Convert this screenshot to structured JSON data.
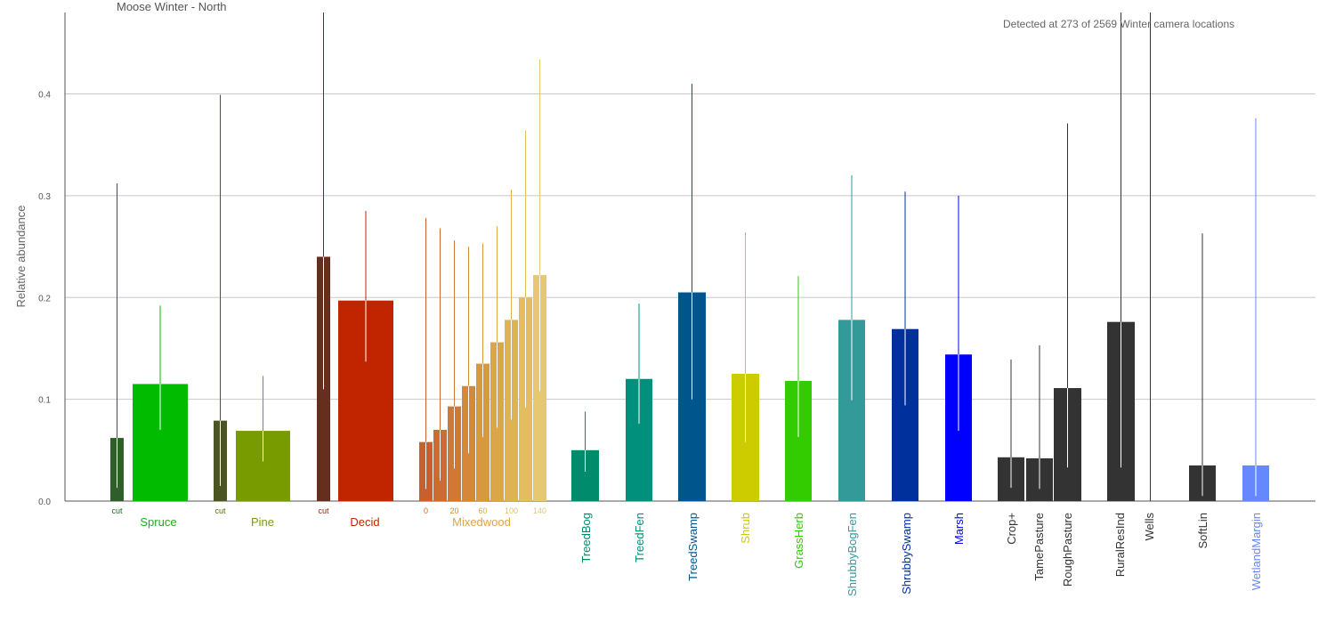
{
  "chart_data": {
    "type": "bar",
    "title": "Moose Winter - North",
    "annotation": "Detected at 273 of 2569 Winter camera locations",
    "ylabel": "Relative abundance",
    "ylim": [
      0,
      0.48
    ],
    "yticks": [
      "0.0",
      "0.1",
      "0.2",
      "0.3",
      "0.4"
    ],
    "ytick_values": [
      0,
      0.1,
      0.2,
      0.3,
      0.4
    ],
    "grid": true,
    "bars": [
      {
        "group": "Spruce",
        "sub": "cut",
        "value": 0.062,
        "lo": 0.013,
        "hi": 0.312,
        "color": "#2e5e2a"
      },
      {
        "group": "Spruce",
        "sub": "",
        "value": 0.115,
        "lo": 0.07,
        "hi": 0.192,
        "color": "#00bb00"
      },
      {
        "group": "Pine",
        "sub": "cut",
        "value": 0.079,
        "lo": 0.015,
        "hi": 0.399,
        "color": "#4b5521"
      },
      {
        "group": "Pine",
        "sub": "",
        "value": 0.069,
        "lo": 0.039,
        "hi": 0.123,
        "color": "#789c00"
      },
      {
        "group": "Decid",
        "sub": "cut",
        "value": 0.24,
        "lo": 0.11,
        "hi": 0.48,
        "color": "#652e1e"
      },
      {
        "group": "Decid",
        "sub": "",
        "value": 0.197,
        "lo": 0.137,
        "hi": 0.285,
        "color": "#c02500"
      },
      {
        "group": "Mixedwood",
        "sub": "0",
        "value": 0.058,
        "lo": 0.012,
        "hi": 0.278,
        "color": "#c8602c"
      },
      {
        "group": "Mixedwood",
        "sub": "",
        "value": 0.07,
        "lo": 0.02,
        "hi": 0.268,
        "color": "#cc6c30"
      },
      {
        "group": "Mixedwood",
        "sub": "20",
        "value": 0.093,
        "lo": 0.032,
        "hi": 0.256,
        "color": "#d07834"
      },
      {
        "group": "Mixedwood",
        "sub": "",
        "value": 0.113,
        "lo": 0.047,
        "hi": 0.25,
        "color": "#d48838"
      },
      {
        "group": "Mixedwood",
        "sub": "60",
        "value": 0.135,
        "lo": 0.063,
        "hi": 0.253,
        "color": "#d8983e"
      },
      {
        "group": "Mixedwood",
        "sub": "",
        "value": 0.156,
        "lo": 0.072,
        "hi": 0.27,
        "color": "#dca648"
      },
      {
        "group": "Mixedwood",
        "sub": "100",
        "value": 0.178,
        "lo": 0.08,
        "hi": 0.306,
        "color": "#e0b254"
      },
      {
        "group": "Mixedwood",
        "sub": "",
        "value": 0.2,
        "lo": 0.092,
        "hi": 0.364,
        "color": "#e3be60"
      },
      {
        "group": "Mixedwood",
        "sub": "140",
        "value": 0.222,
        "lo": 0.108,
        "hi": 0.434,
        "color": "#e6c870"
      },
      {
        "group": "TreedBog",
        "sub": "",
        "value": 0.05,
        "lo": 0.029,
        "hi": 0.088,
        "color": "#008c6c"
      },
      {
        "group": "TreedFen",
        "sub": "",
        "value": 0.12,
        "lo": 0.076,
        "hi": 0.194,
        "color": "#00907c"
      },
      {
        "group": "TreedSwamp",
        "sub": "",
        "value": 0.205,
        "lo": 0.1,
        "hi": 0.41,
        "color": "#00568c"
      },
      {
        "group": "Shrub",
        "sub": "",
        "value": 0.125,
        "lo": 0.058,
        "hi": 0.264,
        "color": "#cccc00"
      },
      {
        "group": "GrassHerb",
        "sub": "",
        "value": 0.118,
        "lo": 0.063,
        "hi": 0.221,
        "color": "#33cc00"
      },
      {
        "group": "ShrubbyBogFen",
        "sub": "",
        "value": 0.178,
        "lo": 0.099,
        "hi": 0.32,
        "color": "#339999"
      },
      {
        "group": "ShrubbySwamp",
        "sub": "",
        "value": 0.169,
        "lo": 0.094,
        "hi": 0.304,
        "color": "#00309c"
      },
      {
        "group": "Marsh",
        "sub": "",
        "value": 0.144,
        "lo": 0.069,
        "hi": 0.3,
        "color": "#0000ff"
      },
      {
        "group": "Crop+",
        "sub": "",
        "value": 0.043,
        "lo": 0.013,
        "hi": 0.139,
        "color": "#333333"
      },
      {
        "group": "TamePasture",
        "sub": "",
        "value": 0.042,
        "lo": 0.012,
        "hi": 0.153,
        "color": "#333333"
      },
      {
        "group": "RoughPasture",
        "sub": "",
        "value": 0.111,
        "lo": 0.033,
        "hi": 0.371,
        "color": "#333333"
      },
      {
        "group": "RuralResInd",
        "sub": "",
        "value": 0.176,
        "lo": 0.033,
        "hi": 0.48,
        "color": "#333333"
      },
      {
        "group": "Wells",
        "sub": "",
        "value": 0.0,
        "lo": 0.0,
        "hi": 0.48,
        "color": "#333333"
      },
      {
        "group": "SoftLin",
        "sub": "",
        "value": 0.035,
        "lo": 0.005,
        "hi": 0.263,
        "color": "#333333"
      },
      {
        "group": "WetlandMargin",
        "sub": "",
        "value": 0.035,
        "lo": 0.005,
        "hi": 0.376,
        "color": "#6688ff"
      }
    ],
    "group_labels": [
      {
        "label": "Spruce",
        "color": "#22aa22",
        "orientation": "horizontal"
      },
      {
        "label": "Pine",
        "color": "#789c00",
        "orientation": "horizontal"
      },
      {
        "label": "Decid",
        "color": "#c02500",
        "orientation": "horizontal"
      },
      {
        "label": "Mixedwood",
        "color": "#dca648",
        "orientation": "horizontal"
      },
      {
        "label": "TreedBog",
        "color": "#008c6c",
        "orientation": "vertical"
      },
      {
        "label": "TreedFen",
        "color": "#00907c",
        "orientation": "vertical"
      },
      {
        "label": "TreedSwamp",
        "color": "#00568c",
        "orientation": "vertical"
      },
      {
        "label": "Shrub",
        "color": "#cccc00",
        "orientation": "vertical"
      },
      {
        "label": "GrassHerb",
        "color": "#33cc00",
        "orientation": "vertical"
      },
      {
        "label": "ShrubbyBogFen",
        "color": "#339999",
        "orientation": "vertical"
      },
      {
        "label": "ShrubbySwamp",
        "color": "#00309c",
        "orientation": "vertical"
      },
      {
        "label": "Marsh",
        "color": "#0000ff",
        "orientation": "vertical"
      },
      {
        "label": "Crop+",
        "color": "#333333",
        "orientation": "vertical"
      },
      {
        "label": "TamePasture",
        "color": "#333333",
        "orientation": "vertical"
      },
      {
        "label": "RoughPasture",
        "color": "#333333",
        "orientation": "vertical"
      },
      {
        "label": "RuralResInd",
        "color": "#333333",
        "orientation": "vertical"
      },
      {
        "label": "Wells",
        "color": "#333333",
        "orientation": "vertical"
      },
      {
        "label": "SoftLin",
        "color": "#333333",
        "orientation": "vertical"
      },
      {
        "label": "WetlandMargin",
        "color": "#6688ff",
        "orientation": "vertical"
      }
    ]
  }
}
